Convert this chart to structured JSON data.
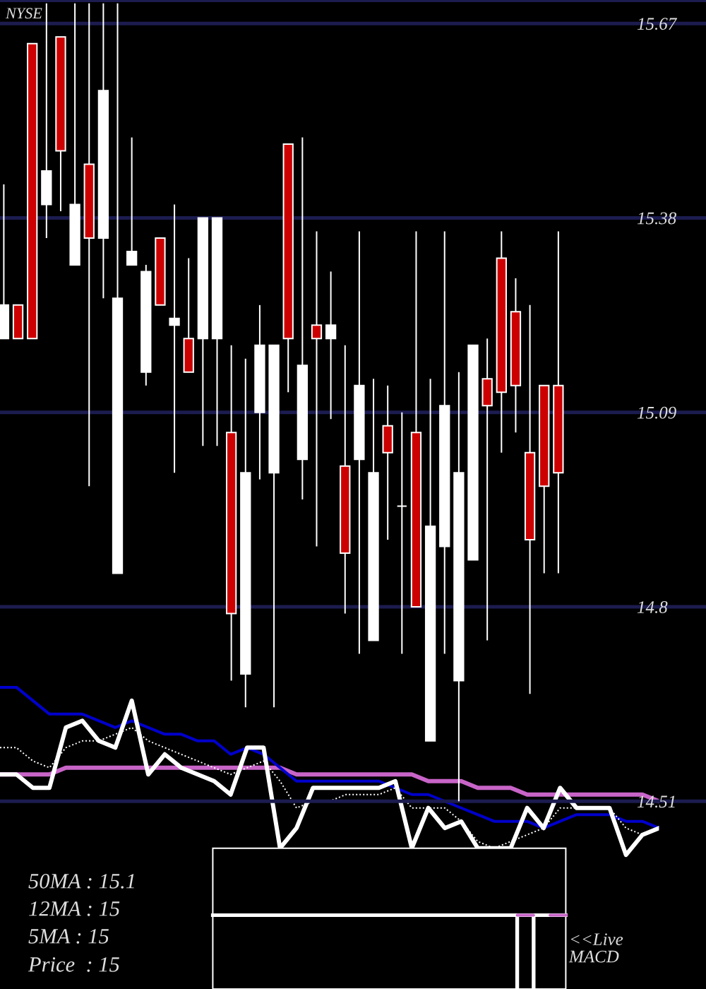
{
  "chart_data": [
    {
      "type": "candlestick",
      "title": "NYSE",
      "categories": [
        null,
        null,
        null,
        null,
        null,
        null,
        null,
        null,
        null,
        null,
        null,
        null,
        null,
        null,
        null,
        null,
        null,
        null,
        null,
        null,
        null,
        null,
        null,
        null,
        null,
        null,
        null,
        null,
        null,
        null,
        null,
        null,
        null,
        null,
        null,
        null,
        null,
        null,
        null,
        null
      ],
      "ohlc": [
        [
          15.2,
          15.43,
          15.2,
          15.25
        ],
        [
          15.25,
          15.25,
          15.2,
          15.2
        ],
        [
          15.64,
          15.64,
          15.2,
          15.2
        ],
        [
          15.4,
          15.7,
          15.35,
          15.45
        ],
        [
          15.65,
          15.65,
          15.39,
          15.48
        ],
        [
          15.31,
          15.7,
          15.31,
          15.4
        ],
        [
          15.46,
          15.7,
          14.98,
          15.35
        ],
        [
          15.35,
          15.7,
          15.26,
          15.57
        ],
        [
          14.85,
          15.7,
          14.85,
          15.26
        ],
        [
          15.31,
          15.5,
          15.31,
          15.33
        ],
        [
          15.15,
          15.31,
          15.13,
          15.3
        ],
        [
          15.35,
          15.35,
          15.25,
          15.25
        ],
        [
          15.22,
          15.4,
          15.0,
          15.23
        ],
        [
          15.2,
          15.32,
          15.15,
          15.15
        ],
        [
          15.2,
          15.38,
          15.04,
          15.38
        ],
        [
          15.2,
          15.38,
          15.04,
          15.38
        ],
        [
          15.06,
          15.19,
          14.69,
          14.79
        ],
        [
          14.7,
          15.17,
          14.65,
          15.0
        ],
        [
          15.09,
          15.25,
          14.99,
          15.19
        ],
        [
          15.0,
          15.19,
          14.65,
          15.19
        ],
        [
          15.49,
          15.49,
          15.12,
          15.2
        ],
        [
          15.02,
          15.5,
          14.96,
          15.16
        ],
        [
          15.22,
          15.36,
          14.89,
          15.2
        ],
        [
          15.2,
          15.3,
          15.08,
          15.22
        ],
        [
          15.01,
          15.19,
          14.79,
          14.88
        ],
        [
          15.02,
          15.36,
          14.73,
          15.13
        ],
        [
          14.75,
          15.14,
          14.75,
          15.0
        ],
        [
          15.07,
          15.13,
          14.9,
          15.03
        ],
        [
          14.95,
          15.09,
          14.73,
          14.95
        ],
        [
          15.06,
          15.36,
          14.8,
          14.8
        ],
        [
          14.6,
          15.14,
          14.6,
          14.92
        ],
        [
          14.89,
          15.36,
          14.73,
          15.1
        ],
        [
          14.69,
          15.15,
          14.51,
          15.0
        ],
        [
          14.87,
          15.19,
          14.87,
          15.19
        ],
        [
          15.14,
          15.2,
          14.75,
          15.1
        ],
        [
          15.32,
          15.36,
          15.03,
          15.12
        ],
        [
          15.24,
          15.29,
          15.06,
          15.13
        ],
        [
          15.03,
          15.25,
          14.67,
          14.9
        ],
        [
          15.13,
          15.13,
          14.85,
          14.98
        ],
        [
          15.13,
          15.36,
          14.85,
          15.0
        ]
      ],
      "colors": [
        "#ffffff",
        "#cc0000",
        "#cc0000",
        "#ffffff",
        "#cc0000",
        "#ffffff",
        "#cc0000",
        "#ffffff",
        "#ffffff",
        "#ffffff",
        "#ffffff",
        "#cc0000",
        "#ffffff",
        "#cc0000",
        "#ffffff",
        "#ffffff",
        "#cc0000",
        "#ffffff",
        "#ffffff",
        "#ffffff",
        "#cc0000",
        "#ffffff",
        "#cc0000",
        "#ffffff",
        "#cc0000",
        "#ffffff",
        "#ffffff",
        "#cc0000",
        "#ffffff",
        "#cc0000",
        "#ffffff",
        "#ffffff",
        "#ffffff",
        "#ffffff",
        "#cc0000",
        "#cc0000",
        "#cc0000",
        "#cc0000",
        "#cc0000",
        "#cc0000"
      ],
      "ylim": [
        14.23,
        15.705
      ],
      "yticks": [
        14.51,
        14.8,
        15.09,
        15.38,
        15.67
      ],
      "grid": "y",
      "tick_labels": "y",
      "annotations": [
        "50MA : 15.1",
        "12MA : 15",
        "5MA : 15",
        "Price  : 15"
      ]
    },
    {
      "type": "line",
      "categories": [
        null,
        null,
        null,
        null,
        null,
        null,
        null,
        null,
        null,
        null,
        null,
        null,
        null,
        null,
        null,
        null,
        null,
        null,
        null,
        null,
        null,
        null,
        null,
        null,
        null,
        null,
        null,
        null,
        null,
        null,
        null,
        null,
        null,
        null,
        null,
        null,
        null,
        null,
        null,
        null,
        null
      ],
      "ylim": [
        14.23,
        15.705
      ],
      "tick_labels": false,
      "series": [
        {
          "color": "#c864c8",
          "values": [
            14.55,
            14.55,
            14.55,
            14.55,
            14.56,
            14.56,
            14.56,
            14.56,
            14.56,
            14.56,
            14.56,
            14.56,
            14.56,
            14.56,
            14.56,
            14.56,
            14.56,
            14.56,
            14.55,
            14.55,
            14.55,
            14.55,
            14.55,
            14.55,
            14.55,
            14.55,
            14.54,
            14.54,
            14.54,
            14.53,
            14.53,
            14.53,
            14.52,
            14.52,
            14.52,
            14.52,
            14.52,
            14.52,
            14.52,
            14.52,
            14.51
          ]
        },
        {
          "color": "#0000cc",
          "values": [
            14.68,
            14.68,
            14.66,
            14.64,
            14.64,
            14.64,
            14.63,
            14.62,
            14.63,
            14.62,
            14.61,
            14.61,
            14.6,
            14.6,
            14.58,
            14.59,
            14.58,
            14.56,
            14.54,
            14.54,
            14.54,
            14.54,
            14.54,
            14.54,
            14.53,
            14.52,
            14.52,
            14.51,
            14.5,
            14.49,
            14.48,
            14.48,
            14.48,
            14.47,
            14.48,
            14.49,
            14.49,
            14.49,
            14.48,
            14.48,
            14.47
          ]
        },
        {
          "color": "#ffffff",
          "line_style": "dotted",
          "values": [
            14.59,
            14.59,
            14.57,
            14.56,
            14.59,
            14.6,
            14.6,
            14.61,
            14.62,
            14.6,
            14.59,
            14.58,
            14.57,
            14.56,
            14.55,
            14.56,
            14.57,
            14.54,
            14.5,
            14.51,
            14.51,
            14.52,
            14.52,
            14.52,
            14.53,
            14.5,
            14.5,
            14.5,
            14.48,
            14.45,
            14.44,
            14.45,
            14.46,
            14.47,
            14.5,
            14.5,
            14.5,
            14.5,
            14.47,
            14.46,
            14.47
          ]
        },
        {
          "color": "#ffffff",
          "values": [
            14.55,
            14.55,
            14.53,
            14.53,
            14.62,
            14.63,
            14.6,
            14.59,
            14.66,
            14.55,
            14.58,
            14.56,
            14.55,
            14.54,
            14.52,
            14.59,
            14.59,
            14.44,
            14.47,
            14.53,
            14.53,
            14.53,
            14.53,
            14.53,
            14.54,
            14.44,
            14.5,
            14.47,
            14.48,
            14.44,
            14.44,
            14.44,
            14.5,
            14.47,
            14.53,
            14.5,
            14.5,
            14.5,
            14.43,
            14.46,
            14.47
          ]
        }
      ]
    },
    {
      "type": "bar",
      "categories": [
        null,
        null,
        null,
        null,
        null,
        null,
        null,
        null,
        null,
        null,
        null,
        null,
        null,
        null,
        null,
        null,
        null,
        null,
        null,
        null,
        null,
        null,
        null,
        null,
        null,
        null,
        null,
        null,
        null,
        null,
        null,
        null,
        null,
        null,
        null,
        null,
        null,
        null,
        null,
        null,
        null,
        null,
        null
      ],
      "ylim": [
        14.23,
        15.705
      ],
      "tick_labels": false,
      "bands": [
        {
          "axis": "y",
          "from": 14.23,
          "to": 14.44,
          "color": "#000000"
        }
      ],
      "ref_lines": [
        {
          "axis": "y",
          "value": 14.34,
          "color": "#ffffff"
        }
      ],
      "series": [
        {
          "color": "#ffffff",
          "values": [
            null,
            null,
            null,
            null,
            null,
            null,
            null,
            null,
            null,
            null,
            null,
            null,
            null,
            null,
            null,
            null,
            null,
            null,
            null,
            null,
            null,
            null,
            null,
            null,
            null,
            null,
            null,
            null,
            null,
            null,
            null,
            -0.11,
            -0.11,
            null,
            null,
            null,
            null,
            null,
            null,
            null,
            null,
            null,
            null
          ],
          "base": [
            null,
            null,
            null,
            null,
            null,
            null,
            null,
            null,
            null,
            null,
            null,
            null,
            null,
            null,
            null,
            null,
            null,
            null,
            null,
            null,
            null,
            null,
            null,
            null,
            null,
            null,
            null,
            null,
            null,
            null,
            null,
            14.34,
            14.34,
            null,
            null,
            null,
            null,
            null,
            null,
            null,
            null,
            null,
            null
          ]
        },
        {
          "type": "line",
          "color": "#c864c8",
          "values": [
            null,
            null,
            null,
            null,
            null,
            null,
            null,
            null,
            null,
            null,
            null,
            null,
            null,
            null,
            null,
            null,
            null,
            null,
            null,
            null,
            null,
            null,
            null,
            null,
            null,
            null,
            null,
            null,
            null,
            null,
            null,
            14.34,
            14.34,
            null,
            null,
            null,
            null,
            null,
            null,
            null,
            null,
            null,
            null
          ]
        },
        {
          "type": "line",
          "color": "#c864c8",
          "values": [
            null,
            null,
            null,
            null,
            null,
            null,
            null,
            null,
            null,
            null,
            null,
            null,
            null,
            null,
            null,
            null,
            null,
            null,
            null,
            null,
            null,
            null,
            null,
            null,
            null,
            null,
            null,
            null,
            null,
            null,
            null,
            null,
            null,
            14.34,
            14.34,
            null,
            null,
            null,
            null,
            null,
            null,
            null,
            null
          ]
        }
      ],
      "annotations": [
        "<<Live MACD"
      ]
    }
  ]
}
